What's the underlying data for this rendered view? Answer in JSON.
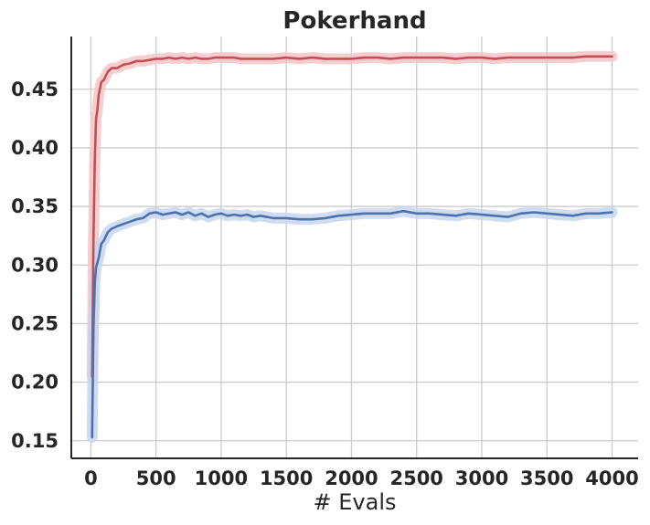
{
  "chart_data": {
    "type": "line",
    "title": "Pokerhand",
    "xlabel": "# Evals",
    "ylabel": "",
    "xlim": [
      -150,
      4200
    ],
    "ylim": [
      0.135,
      0.495
    ],
    "xticks": [
      0,
      500,
      1000,
      1500,
      2000,
      2500,
      3000,
      3500,
      4000
    ],
    "xtick_labels": [
      "0",
      "500",
      "1000",
      "1500",
      "2000",
      "2500",
      "3000",
      "3500",
      "4000"
    ],
    "yticks": [
      0.15,
      0.2,
      0.25,
      0.3,
      0.35,
      0.4,
      0.45
    ],
    "ytick_labels": [
      "0.15",
      "0.20",
      "0.25",
      "0.30",
      "0.35",
      "0.40",
      "0.45"
    ],
    "grid": true,
    "series": [
      {
        "color": "#c44e52",
        "band_color": "#f4c6c8",
        "x": [
          10,
          20,
          30,
          40,
          50,
          60,
          80,
          100,
          130,
          160,
          200,
          250,
          300,
          350,
          400,
          450,
          500,
          550,
          600,
          650,
          700,
          750,
          800,
          850,
          900,
          950,
          1000,
          1050,
          1100,
          1150,
          1200,
          1300,
          1400,
          1500,
          1600,
          1700,
          1800,
          1900,
          2000,
          2100,
          2200,
          2300,
          2400,
          2500,
          2600,
          2700,
          2800,
          2900,
          3000,
          3100,
          3200,
          3300,
          3400,
          3500,
          3600,
          3700,
          3800,
          3900,
          4000
        ],
        "y": [
          0.205,
          0.32,
          0.39,
          0.425,
          0.432,
          0.445,
          0.456,
          0.458,
          0.465,
          0.468,
          0.468,
          0.471,
          0.472,
          0.474,
          0.474,
          0.475,
          0.476,
          0.476,
          0.477,
          0.476,
          0.477,
          0.476,
          0.477,
          0.476,
          0.476,
          0.477,
          0.477,
          0.477,
          0.477,
          0.476,
          0.476,
          0.476,
          0.476,
          0.477,
          0.476,
          0.477,
          0.476,
          0.476,
          0.476,
          0.477,
          0.477,
          0.476,
          0.477,
          0.477,
          0.477,
          0.477,
          0.476,
          0.477,
          0.477,
          0.476,
          0.477,
          0.477,
          0.477,
          0.477,
          0.477,
          0.477,
          0.478,
          0.478,
          0.478
        ],
        "band": 0.003
      },
      {
        "color": "#4c72b0",
        "band_color": "#c8d6ec",
        "x": [
          10,
          20,
          30,
          40,
          50,
          60,
          80,
          100,
          130,
          160,
          200,
          250,
          300,
          350,
          400,
          450,
          500,
          550,
          600,
          650,
          700,
          750,
          800,
          850,
          900,
          950,
          1000,
          1050,
          1100,
          1150,
          1200,
          1250,
          1300,
          1400,
          1500,
          1600,
          1700,
          1800,
          1900,
          2000,
          2100,
          2200,
          2300,
          2400,
          2500,
          2600,
          2700,
          2800,
          2900,
          3000,
          3100,
          3200,
          3300,
          3400,
          3500,
          3600,
          3700,
          3800,
          3900,
          4000
        ],
        "y": [
          0.153,
          0.245,
          0.285,
          0.298,
          0.302,
          0.306,
          0.318,
          0.321,
          0.328,
          0.331,
          0.333,
          0.335,
          0.337,
          0.339,
          0.34,
          0.344,
          0.345,
          0.343,
          0.344,
          0.345,
          0.343,
          0.345,
          0.342,
          0.344,
          0.341,
          0.343,
          0.344,
          0.342,
          0.343,
          0.342,
          0.343,
          0.341,
          0.342,
          0.34,
          0.34,
          0.339,
          0.339,
          0.34,
          0.342,
          0.343,
          0.344,
          0.344,
          0.344,
          0.346,
          0.344,
          0.344,
          0.343,
          0.342,
          0.344,
          0.343,
          0.342,
          0.341,
          0.344,
          0.345,
          0.344,
          0.343,
          0.342,
          0.344,
          0.344,
          0.345
        ],
        "band": 0.003
      }
    ]
  }
}
